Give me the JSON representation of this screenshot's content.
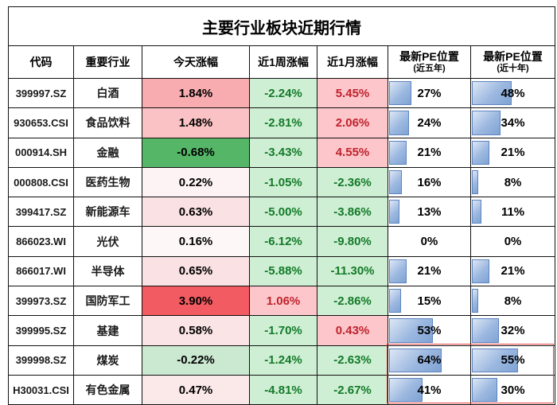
{
  "title": "主要行业板块近期行情",
  "columns": [
    {
      "key": "code",
      "label": "代码"
    },
    {
      "key": "industry",
      "label": "重要行业"
    },
    {
      "key": "today",
      "label": "今天涨幅"
    },
    {
      "key": "week",
      "label": "近1周涨幅"
    },
    {
      "key": "month",
      "label": "近1月涨幅"
    },
    {
      "key": "pe5",
      "label": "最新PE位置",
      "sub": "(近五年)"
    },
    {
      "key": "pe10",
      "label": "最新PE位置",
      "sub": "(近十年)"
    }
  ],
  "colors": {
    "positive_bg": "#FCC6CB",
    "positive_text": "#C0222C",
    "negative_bg": "#CFEFD5",
    "negative_text": "#137A28",
    "bar_fill_light": "#DDE7F5",
    "bar_fill_mid": "#9CB8E0",
    "bar_fill_dark": "#7FA3D4",
    "bar_border": "#5D84BF",
    "highlight_border": "#E23C3C",
    "grid": "#111111"
  },
  "rows": [
    {
      "code": "399997.SZ",
      "industry": "白酒",
      "today": "1.84%",
      "today_bg": "#F8ACAF",
      "week": "-2.24%",
      "week_dir": "down",
      "month": "5.45%",
      "month_dir": "up",
      "pe5": 27,
      "pe10": 48
    },
    {
      "code": "930653.CSI",
      "industry": "食品饮料",
      "today": "1.48%",
      "today_bg": "#FAC2C4",
      "week": "-2.81%",
      "week_dir": "down",
      "month": "2.06%",
      "month_dir": "up",
      "pe5": 24,
      "pe10": 34
    },
    {
      "code": "000914.SH",
      "industry": "金融",
      "today": "-0.68%",
      "today_bg": "#55B667",
      "week": "-3.43%",
      "week_dir": "down",
      "month": "4.55%",
      "month_dir": "up",
      "pe5": 21,
      "pe10": 21
    },
    {
      "code": "000808.CSI",
      "industry": "医药生物",
      "today": "0.22%",
      "today_bg": "#FDF3F4",
      "week": "-1.05%",
      "week_dir": "down",
      "month": "-2.36%",
      "month_dir": "down",
      "pe5": 16,
      "pe10": 8
    },
    {
      "code": "399417.SZ",
      "industry": "新能源车",
      "today": "0.63%",
      "today_bg": "#FAE1E3",
      "week": "-5.00%",
      "week_dir": "down",
      "month": "-3.86%",
      "month_dir": "down",
      "pe5": 13,
      "pe10": 11
    },
    {
      "code": "866023.WI",
      "industry": "光伏",
      "today": "0.16%",
      "today_bg": "#FEF7F8",
      "week": "-6.12%",
      "week_dir": "down",
      "month": "-9.80%",
      "month_dir": "down",
      "pe5": 0,
      "pe10": 0
    },
    {
      "code": "866017.WI",
      "industry": "半导体",
      "today": "0.65%",
      "today_bg": "#FAE1E3",
      "week": "-5.88%",
      "week_dir": "down",
      "month": "-11.30%",
      "month_dir": "down",
      "pe5": 21,
      "pe10": 21
    },
    {
      "code": "399973.SZ",
      "industry": "国防军工",
      "today": "3.90%",
      "today_bg": "#F25B61",
      "week": "1.06%",
      "week_dir": "up",
      "month": "-2.86%",
      "month_dir": "down",
      "pe5": 15,
      "pe10": 8
    },
    {
      "code": "399995.SZ",
      "industry": "基建",
      "today": "0.58%",
      "today_bg": "#FAE4E5",
      "week": "-1.70%",
      "week_dir": "down",
      "month": "0.43%",
      "month_dir": "up",
      "pe5": 53,
      "pe10": 32
    },
    {
      "code": "399998.SZ",
      "industry": "煤炭",
      "today": "-0.22%",
      "today_bg": "#CBE9D1",
      "week": "-1.24%",
      "week_dir": "down",
      "month": "-2.63%",
      "month_dir": "down",
      "pe5": 64,
      "pe10": 55,
      "highlight": true
    },
    {
      "code": "H30031.CSI",
      "industry": "有色金属",
      "today": "0.47%",
      "today_bg": "#FBE8E9",
      "week": "-4.81%",
      "week_dir": "down",
      "month": "-2.67%",
      "month_dir": "down",
      "pe5": 41,
      "pe10": 30,
      "highlight": true
    }
  ],
  "chart_data": {
    "type": "table",
    "title": "主要行业板块近期行情",
    "columns": [
      "代码",
      "重要行业",
      "今天涨幅",
      "近1周涨幅",
      "近1月涨幅",
      "最新PE位置(近五年)",
      "最新PE位置(近十年)"
    ],
    "rows": [
      [
        "399997.SZ",
        "白酒",
        "1.84%",
        "-2.24%",
        "5.45%",
        "27%",
        "48%"
      ],
      [
        "930653.CSI",
        "食品饮料",
        "1.48%",
        "-2.81%",
        "2.06%",
        "24%",
        "34%"
      ],
      [
        "000914.SH",
        "金融",
        "-0.68%",
        "-3.43%",
        "4.55%",
        "21%",
        "21%"
      ],
      [
        "000808.CSI",
        "医药生物",
        "0.22%",
        "-1.05%",
        "-2.36%",
        "16%",
        "8%"
      ],
      [
        "399417.SZ",
        "新能源车",
        "0.63%",
        "-5.00%",
        "-3.86%",
        "13%",
        "11%"
      ],
      [
        "866023.WI",
        "光伏",
        "0.16%",
        "-6.12%",
        "-9.80%",
        "0%",
        "0%"
      ],
      [
        "866017.WI",
        "半导体",
        "0.65%",
        "-5.88%",
        "-11.30%",
        "21%",
        "21%"
      ],
      [
        "399973.SZ",
        "国防军工",
        "3.90%",
        "1.06%",
        "-2.86%",
        "15%",
        "8%"
      ],
      [
        "399995.SZ",
        "基建",
        "0.58%",
        "-1.70%",
        "0.43%",
        "53%",
        "32%"
      ],
      [
        "399998.SZ",
        "煤炭",
        "-0.22%",
        "-1.24%",
        "-2.63%",
        "64%",
        "55%"
      ],
      [
        "H30031.CSI",
        "有色金属",
        "0.47%",
        "-4.81%",
        "-2.67%",
        "41%",
        "30%"
      ]
    ],
    "notes": {
      "pe_bars": "blue data bars in both PE columns, bar length = percentage of cell width (0-100%)",
      "highlight": "red rectangle outlines the two PE columns of the last two rows (煤炭, 有色金属)"
    }
  }
}
